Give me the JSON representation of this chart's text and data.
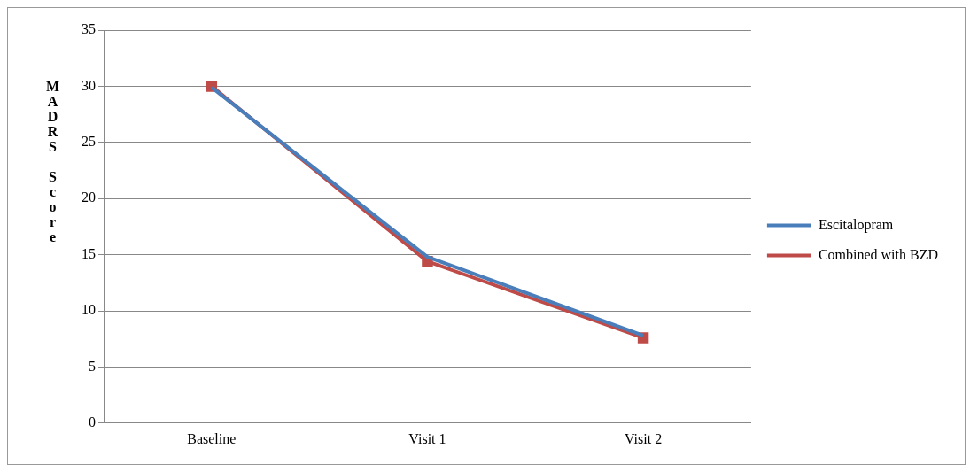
{
  "chart_data": {
    "type": "line",
    "ylabel": "MADRS Score",
    "categories": [
      "Baseline",
      "Visit 1",
      "Visit 2"
    ],
    "series": [
      {
        "name": "Escitalopram",
        "color": "#4a7ebb",
        "values": [
          29.9,
          14.8,
          7.8
        ],
        "marker": "none"
      },
      {
        "name": "Combined with BZD",
        "color": "#be4b48",
        "values": [
          30,
          14.4,
          7.6
        ],
        "marker": "square"
      }
    ],
    "ylim": [
      0,
      35
    ],
    "yticks": [
      0,
      5,
      10,
      15,
      20,
      25,
      30,
      35
    ],
    "grid": "y",
    "legend": "right"
  }
}
